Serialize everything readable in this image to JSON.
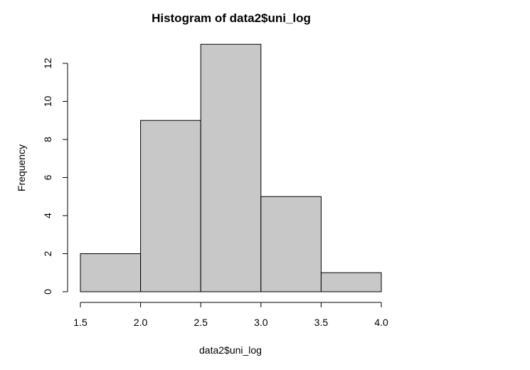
{
  "chart_data": {
    "type": "bar",
    "title": "Histogram of data2$uni_log",
    "xlabel": "data2$uni_log",
    "ylabel": "Frequency",
    "bins": [
      {
        "from": 1.5,
        "to": 2.0,
        "count": 2
      },
      {
        "from": 2.0,
        "to": 2.5,
        "count": 9
      },
      {
        "from": 2.5,
        "to": 3.0,
        "count": 13
      },
      {
        "from": 3.0,
        "to": 3.5,
        "count": 5
      },
      {
        "from": 3.5,
        "to": 4.0,
        "count": 1
      }
    ],
    "xlim": [
      1.5,
      4.0
    ],
    "ylim": [
      0,
      13
    ],
    "x_ticks": [
      "1.5",
      "2.0",
      "2.5",
      "3.0",
      "3.5",
      "4.0"
    ],
    "y_ticks": [
      "0",
      "2",
      "4",
      "6",
      "8",
      "10",
      "12"
    ],
    "grid": false,
    "bar_fill": "#c8c8c8",
    "bar_stroke": "#000000"
  }
}
